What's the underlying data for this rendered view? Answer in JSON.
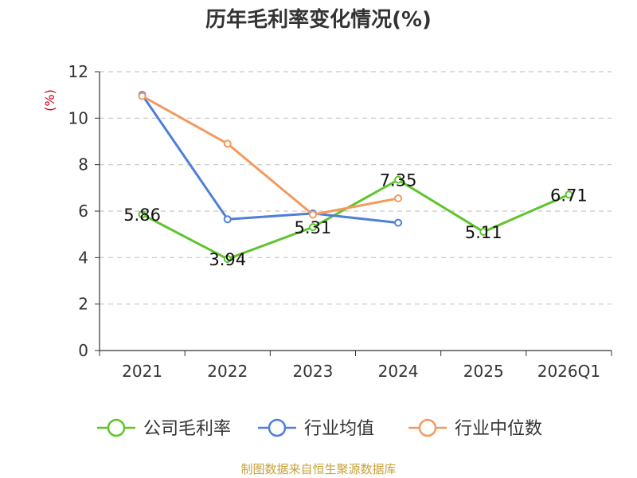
{
  "chart_data": {
    "type": "line",
    "title": "历年毛利率变化情况(%)",
    "ylabel": "(%)",
    "xlabel": "",
    "categories": [
      "2021",
      "2022",
      "2023",
      "2024",
      "2025",
      "2026Q1"
    ],
    "ylim": [
      0,
      12
    ],
    "yticks": [
      0,
      2,
      4,
      6,
      8,
      10,
      12
    ],
    "grid": true,
    "legend_position": "bottom",
    "series": [
      {
        "name": "公司毛利率",
        "color": "#5ec42c",
        "values": [
          5.86,
          3.94,
          5.31,
          7.35,
          5.11,
          6.71
        ],
        "labels": [
          "5.86",
          "3.94",
          "5.31",
          "7.35",
          "5.11",
          "6.71"
        ]
      },
      {
        "name": "行业均值",
        "color": "#4f7fd9",
        "values": [
          11.0,
          5.65,
          5.9,
          5.5,
          null,
          null
        ]
      },
      {
        "name": "行业中位数",
        "color": "#f39a60",
        "values": [
          10.95,
          8.9,
          5.85,
          6.55,
          null,
          null
        ]
      }
    ]
  },
  "source": "制图数据来自恒生聚源数据库"
}
